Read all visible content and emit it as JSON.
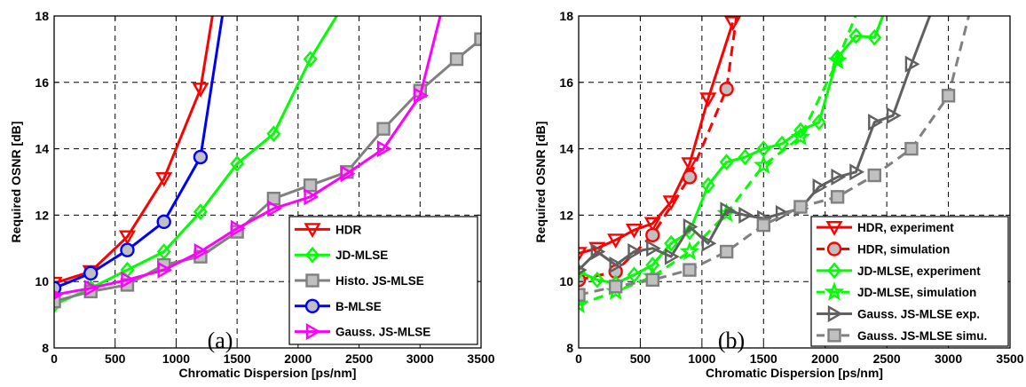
{
  "chart_data": [
    {
      "type": "line",
      "panel_label": "(a)",
      "xlabel": "Chromatic Dispersion [ps/nm]",
      "ylabel": "Required OSNR [dB]",
      "xlim": [
        0,
        3500
      ],
      "ylim": [
        8,
        18
      ],
      "xticks": [
        "0",
        "500",
        "1000",
        "1500",
        "2000",
        "2500",
        "3000",
        "3500"
      ],
      "yticks": [
        "8",
        "10",
        "12",
        "14",
        "16",
        "18"
      ],
      "grid": true,
      "legend_position": "bottom-right",
      "series": [
        {
          "name": "HDR",
          "color": "#ff0000",
          "marker": "triangle-down",
          "dashed": false,
          "x": [
            0,
            300,
            600,
            900,
            1200,
            1320
          ],
          "y": [
            9.95,
            10.3,
            11.35,
            13.1,
            15.8,
            18.5
          ]
        },
        {
          "name": "JD-MLSE",
          "color": "#00ff00",
          "marker": "diamond",
          "dashed": false,
          "x": [
            0,
            300,
            600,
            900,
            1200,
            1500,
            1800,
            2100,
            2400
          ],
          "y": [
            9.3,
            9.8,
            10.35,
            10.9,
            12.1,
            13.55,
            14.45,
            16.7,
            18.5
          ]
        },
        {
          "name": "Histo. JS-MLSE",
          "color": "#808080",
          "marker": "square",
          "dashed": false,
          "x": [
            0,
            300,
            600,
            900,
            1200,
            1500,
            1800,
            2100,
            2400,
            2700,
            3000,
            3300,
            3500
          ],
          "y": [
            9.4,
            9.7,
            9.9,
            10.5,
            10.75,
            11.5,
            12.5,
            12.9,
            13.3,
            14.6,
            15.75,
            16.7,
            17.3
          ]
        },
        {
          "name": "B-MLSE",
          "color": "#0000ff",
          "marker": "circle",
          "dashed": false,
          "x": [
            0,
            300,
            600,
            900,
            1200,
            1400
          ],
          "y": [
            9.8,
            10.25,
            10.95,
            11.8,
            13.75,
            18.5
          ]
        },
        {
          "name": "Gauss. JS-MLSE",
          "color": "#ff00ff",
          "marker": "triangle-right",
          "dashed": false,
          "x": [
            0,
            300,
            600,
            900,
            1200,
            1500,
            1800,
            2100,
            2400,
            2700,
            3000,
            3200
          ],
          "y": [
            9.6,
            9.8,
            10.05,
            10.35,
            10.9,
            11.6,
            12.2,
            12.55,
            13.25,
            14.0,
            15.6,
            18.5
          ]
        }
      ]
    },
    {
      "type": "line",
      "panel_label": "(b)",
      "xlabel": "Chromatic Dispersion [ps/nm]",
      "ylabel": "Required OSNR [dB]",
      "xlim": [
        0,
        3500
      ],
      "ylim": [
        8,
        18
      ],
      "xticks": [
        "0",
        "500",
        "1000",
        "1500",
        "2000",
        "2500",
        "3000",
        "3500"
      ],
      "yticks": [
        "8",
        "10",
        "12",
        "14",
        "16",
        "18"
      ],
      "grid": true,
      "legend_position": "bottom-right",
      "series": [
        {
          "name": "HDR, experiment",
          "color": "#ff0000",
          "marker": "triangle-down",
          "dashed": false,
          "x": [
            0,
            150,
            300,
            450,
            600,
            750,
            900,
            1050,
            1250
          ],
          "y": [
            10.85,
            11.0,
            11.25,
            11.55,
            11.75,
            12.4,
            13.55,
            15.5,
            17.8
          ]
        },
        {
          "name": "HDR, simulation",
          "color": "#ff0000",
          "marker": "circle",
          "dashed": true,
          "x": [
            0,
            300,
            600,
            900,
            1200,
            1300
          ],
          "y": [
            10.05,
            10.3,
            11.4,
            13.15,
            15.8,
            18.5
          ]
        },
        {
          "name": "JD-MLSE, experiment",
          "color": "#00ff00",
          "marker": "diamond",
          "dashed": false,
          "x": [
            0,
            150,
            300,
            450,
            600,
            750,
            900,
            1050,
            1200,
            1350,
            1500,
            1650,
            1800,
            1950,
            2100,
            2250,
            2400,
            2520
          ],
          "y": [
            10.3,
            10.05,
            9.95,
            10.2,
            10.5,
            11.15,
            11.5,
            12.9,
            13.6,
            13.75,
            14.0,
            14.15,
            14.55,
            14.8,
            16.75,
            17.4,
            17.35,
            18.5
          ]
        },
        {
          "name": "JD-MLSE, simulation",
          "color": "#00ff00",
          "marker": "star",
          "dashed": true,
          "x": [
            0,
            300,
            600,
            900,
            1200,
            1500,
            1800,
            2100,
            2300
          ],
          "y": [
            9.3,
            9.7,
            10.15,
            10.9,
            12.05,
            13.5,
            14.35,
            16.65,
            18.5
          ]
        },
        {
          "name": "Gauss. JS-MLSE exp.",
          "color": "#606060",
          "marker": "triangle-right",
          "dashed": false,
          "x": [
            0,
            150,
            300,
            450,
            600,
            750,
            900,
            1050,
            1200,
            1350,
            1500,
            1650,
            1800,
            1950,
            2100,
            2250,
            2400,
            2550,
            2700,
            2900
          ],
          "y": [
            10.35,
            10.9,
            10.5,
            10.9,
            11.0,
            10.75,
            11.65,
            11.15,
            12.15,
            12.0,
            11.9,
            12.05,
            12.2,
            12.85,
            13.15,
            13.3,
            14.8,
            15.0,
            16.55,
            18.5
          ]
        },
        {
          "name": "Gauss. JS-MLSE simu.",
          "color": "#808080",
          "marker": "square",
          "dashed": true,
          "x": [
            0,
            300,
            600,
            900,
            1200,
            1500,
            1800,
            2100,
            2400,
            2700,
            3000,
            3200
          ],
          "y": [
            9.6,
            9.85,
            10.05,
            10.35,
            10.9,
            11.7,
            12.25,
            12.55,
            13.2,
            14.0,
            15.6,
            18.5
          ]
        }
      ]
    }
  ]
}
